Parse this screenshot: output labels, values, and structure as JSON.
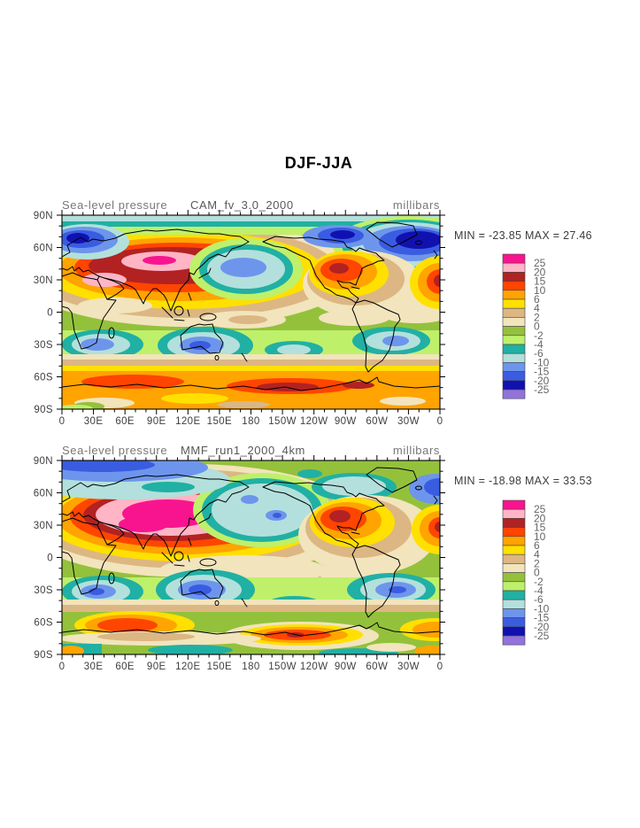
{
  "title": "DJF-JJA",
  "panels": [
    {
      "var_label": "Sea-level pressure",
      "case_name": "CAM_fv_3.0_2000",
      "units": "millibars",
      "stats": "MIN = -23.85 MAX =  27.46"
    },
    {
      "var_label": "Sea-level pressure",
      "case_name": "MMF_run1_2000_4km",
      "units": "millibars",
      "stats": "MIN = -18.98 MAX =  33.53"
    }
  ],
  "axes": {
    "lat_labels": [
      "90N",
      "60N",
      "30N",
      "0",
      "30S",
      "60S",
      "90S"
    ],
    "lon_labels": [
      "0",
      "30E",
      "60E",
      "90E",
      "120E",
      "150E",
      "180",
      "150W",
      "120W",
      "90W",
      "60W",
      "30W",
      "0"
    ]
  },
  "colorbar": {
    "labels": [
      "25",
      "20",
      "15",
      "10",
      "6",
      "4",
      "2",
      "0",
      "-2",
      "-4",
      "-6",
      "-10",
      "-15",
      "-20",
      "-25"
    ],
    "colors": [
      "#f9148f",
      "#ffb5c5",
      "#b22222",
      "#ff4500",
      "#ffa400",
      "#ffe000",
      "#dcb783",
      "#f2e4bc",
      "#94c13c",
      "#bff06a",
      "#21b0a4",
      "#b3e0dc",
      "#6d95ec",
      "#3a5ce0",
      "#1111b0",
      "#9173db"
    ]
  },
  "chart_data": {
    "type": "heatmap",
    "title": "DJF-JJA",
    "variable": "Sea-level pressure",
    "units": "millibars",
    "projection": "equirectangular lat-lon, longitude 0E eastward to 0",
    "x_ticks": [
      "0",
      "30E",
      "60E",
      "90E",
      "120E",
      "150E",
      "180",
      "150W",
      "120W",
      "90W",
      "60W",
      "30W",
      "0"
    ],
    "y_ticks": [
      "90N",
      "60N",
      "30N",
      "0",
      "30S",
      "60S",
      "90S"
    ],
    "contour_levels": [
      -25,
      -20,
      -15,
      -10,
      -6,
      -4,
      -2,
      0,
      2,
      4,
      6,
      10,
      15,
      20,
      25
    ],
    "palette_low_to_high": [
      "#9173db",
      "#1111b0",
      "#3a5ce0",
      "#6d95ec",
      "#b3e0dc",
      "#21b0a4",
      "#bff06a",
      "#94c13c",
      "#f2e4bc",
      "#dcb783",
      "#ffe000",
      "#ffa400",
      "#ff4500",
      "#b22222",
      "#ffb5c5",
      "#f9148f"
    ],
    "legend_position": "right of each map",
    "grid": false,
    "panels": [
      {
        "case": "CAM_fv_3.0_2000",
        "min": -23.85,
        "max": 27.46
      },
      {
        "case": "MMF_run1_2000_4km",
        "min": -18.98,
        "max": 33.53
      }
    ]
  }
}
